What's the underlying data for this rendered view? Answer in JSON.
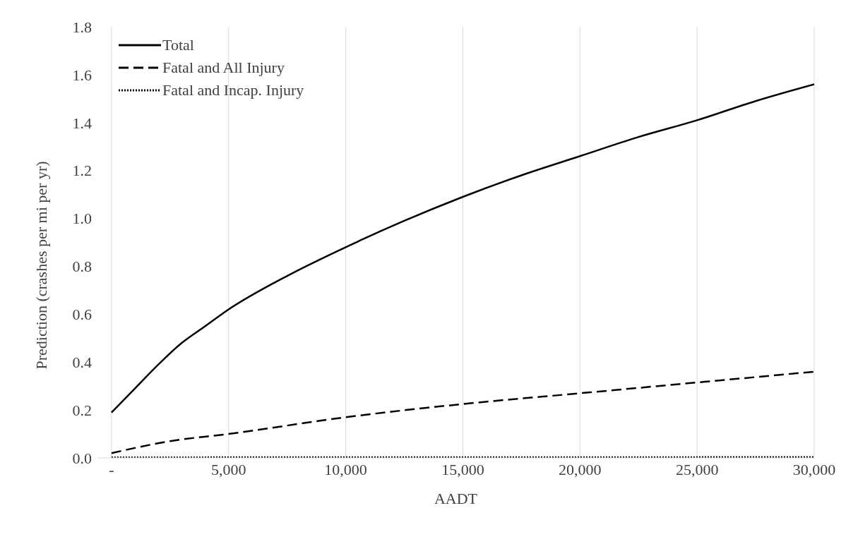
{
  "chart_data": {
    "type": "line",
    "xlabel": "AADT",
    "ylabel": "Prediction (crashes per mi per yr)",
    "xlim": [
      -600,
      30000
    ],
    "xticks": [
      {
        "value": 0,
        "label": "-"
      },
      {
        "value": 5000,
        "label": "5,000"
      },
      {
        "value": 10000,
        "label": "10,000"
      },
      {
        "value": 15000,
        "label": "15,000"
      },
      {
        "value": 20000,
        "label": "20,000"
      },
      {
        "value": 25000,
        "label": "25,000"
      },
      {
        "value": 30000,
        "label": "30,000"
      }
    ],
    "ylim": [
      0,
      1.8
    ],
    "yticks": [
      {
        "value": 0,
        "label": "0.0"
      },
      {
        "value": 0.2,
        "label": "0.2"
      },
      {
        "value": 0.4,
        "label": "0.4"
      },
      {
        "value": 0.6,
        "label": "0.6"
      },
      {
        "value": 0.8,
        "label": "0.8"
      },
      {
        "value": 1,
        "label": "1.0"
      },
      {
        "value": 1.2,
        "label": "1.2"
      },
      {
        "value": 1.4,
        "label": "1.4"
      },
      {
        "value": 1.6,
        "label": "1.6"
      },
      {
        "value": 1.8,
        "label": "1.8"
      }
    ],
    "grid": true,
    "legend": "top left",
    "marker": "none",
    "series": [
      {
        "name": "Total",
        "color": "#000000",
        "line_style": "solid",
        "x": [
          0,
          1000,
          2000,
          3000,
          4000,
          5000,
          7500,
          10000,
          12500,
          15000,
          17500,
          20000,
          22500,
          25000,
          27500,
          30000
        ],
        "values": [
          0.19,
          0.29,
          0.39,
          0.48,
          0.55,
          0.62,
          0.76,
          0.88,
          0.99,
          1.09,
          1.18,
          1.26,
          1.34,
          1.41,
          1.49,
          1.56
        ]
      },
      {
        "name": "Fatal and All Injury",
        "color": "#000000",
        "line_style": "dashed",
        "x": [
          0,
          2500,
          5000,
          10000,
          15000,
          20000,
          25000,
          30000
        ],
        "values": [
          0.02,
          0.07,
          0.1,
          0.17,
          0.225,
          0.27,
          0.315,
          0.36
        ]
      },
      {
        "name": "Fatal and Incap. Injury",
        "color": "#000000",
        "line_style": "dotted",
        "x": [
          0,
          10000,
          20000,
          30000
        ],
        "values": [
          0.002,
          0.003,
          0.003,
          0.004
        ]
      }
    ]
  }
}
